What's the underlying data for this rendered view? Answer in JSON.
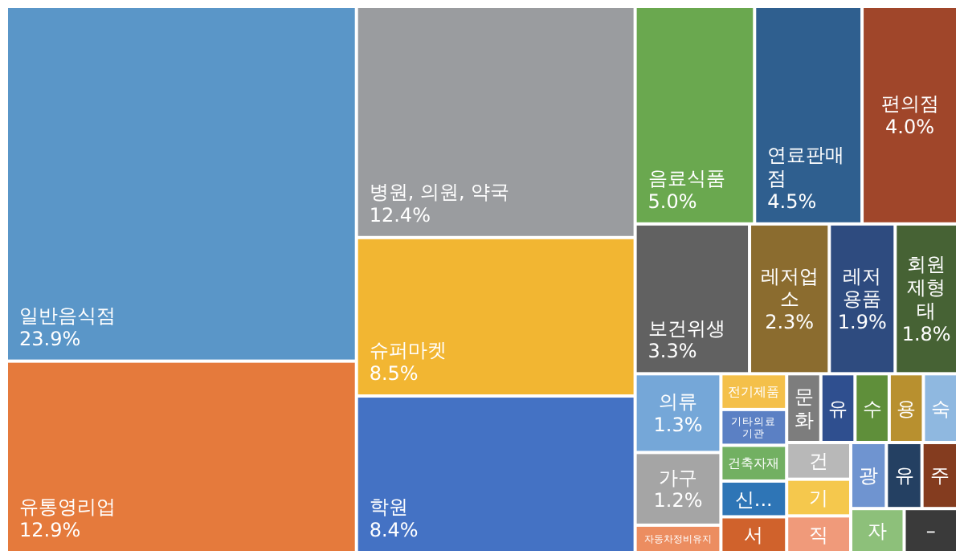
{
  "chart_data": {
    "type": "other",
    "categories": [
      "일반음식점",
      "유통영리업",
      "병원, 의원, 약국",
      "슈퍼마켓",
      "학원",
      "음료식품",
      "연료판매점",
      "편의점",
      "보건위생",
      "레저업소",
      "레저용품",
      "회원제형태",
      "의류",
      "가구",
      "자동차정비유지",
      "전기제품",
      "기타의료기관",
      "건축자재",
      "신...",
      "서",
      "문화",
      "유",
      "수",
      "용",
      "숙",
      "건",
      "기",
      "직",
      "광",
      "유",
      "주",
      "자",
      "–"
    ],
    "values": [
      23.9,
      12.9,
      12.4,
      8.5,
      8.4,
      5.0,
      4.5,
      4.0,
      3.3,
      2.3,
      1.9,
      1.8,
      1.3,
      1.2,
      null,
      null,
      null,
      null,
      null,
      null,
      null,
      null,
      null,
      null,
      null,
      null,
      null,
      null,
      null,
      null,
      null,
      null,
      null
    ],
    "value_labels": [
      "23.9%",
      "12.9%",
      "12.4%",
      "8.5%",
      "8.4%",
      "5.0%",
      "4.5%",
      "4.0%",
      "3.3%",
      "2.3%",
      "1.9%",
      "1.8%",
      "1.3%",
      "1.2%",
      null,
      null,
      null,
      null,
      null,
      null,
      null,
      null,
      null,
      null,
      null,
      null,
      null,
      null,
      null,
      null,
      null,
      null,
      null
    ],
    "colors": [
      "#5a96c8",
      "#e57a3c",
      "#9a9c9f",
      "#f2b632",
      "#4472c4",
      "#6aa84f",
      "#2f5f8f",
      "#a0462a",
      "#616161",
      "#8b6c2f",
      "#2e4b7f",
      "#466234",
      "#75a7d8",
      "#a5a5a5",
      "#ec8d60",
      "#f4c04a",
      "#5b80c4",
      "#72b062",
      "#2e75b6",
      "#d0622c",
      "#7d7d7d",
      "#2f4f8f",
      "#5f8f3a",
      "#b8902f",
      "#8fb8e0",
      "#b8b8b8",
      "#f5c84d",
      "#f09a7a",
      "#6f94d0",
      "#244062",
      "#843c1f",
      "#8dc07a",
      "#3a3a3a"
    ]
  }
}
